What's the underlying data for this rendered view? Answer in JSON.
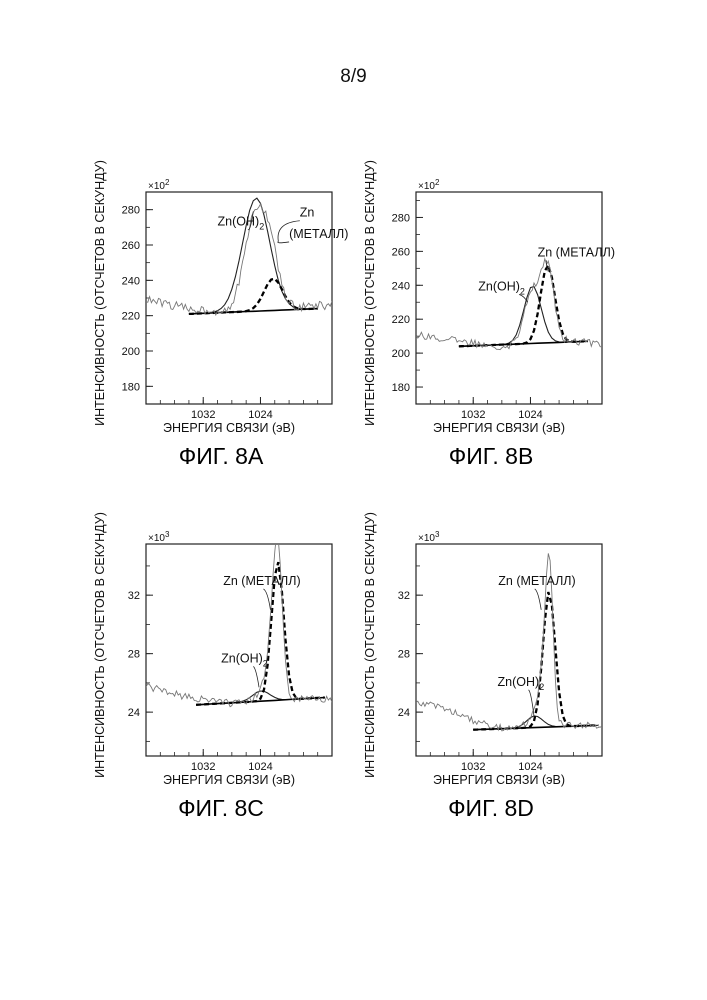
{
  "page": {
    "number": "8/9"
  },
  "chart_data": [
    {
      "id": "8A",
      "type": "line",
      "caption": "ФИГ. 8A",
      "title": "",
      "xlabel": "ЭНЕРГИЯ СВЯЗИ (эВ)",
      "ylabel": "ИНТЕНСИВНОСТЬ (ОТСЧЕТОВ В СЕКУНДУ)",
      "multiplier": "×10",
      "multiplier_exp": "2",
      "xlim": [
        1040,
        1014
      ],
      "ylim": [
        170,
        290
      ],
      "x_ticks": [
        1032,
        1024
      ],
      "y_ticks": [
        180,
        200,
        220,
        240,
        260,
        280
      ],
      "annotations": [
        {
          "text": "Zn(OH)",
          "sub": "2",
          "x": 1030,
          "y": 271,
          "target_x": 1025,
          "target_y": 279
        },
        {
          "text": "Zn",
          "sub": "",
          "x": 1018.5,
          "y": 276,
          "target_x": 1021.5,
          "target_y": 262
        },
        {
          "text": "(МЕТАЛЛ)",
          "sub": "",
          "x": 1020,
          "y": 264,
          "target_x": 1021.5,
          "target_y": 262
        }
      ],
      "series": [
        {
          "name": "Zn(OH)2",
          "style": "thin",
          "noise": 0,
          "data_step": 0.5,
          "baseline": [
            [
              1034,
              221
            ],
            [
              1016,
              224
            ]
          ],
          "peaks": [
            [
              1024.6,
              64,
              1.9
            ]
          ]
        },
        {
          "name": "Zn (МЕТАЛЛ)",
          "style": "dashed",
          "noise": 0,
          "data_step": 0.5,
          "baseline": [
            [
              1034,
              221
            ],
            [
              1016,
              224
            ]
          ],
          "peaks": [
            [
              1022.2,
              18,
              1.3
            ]
          ]
        },
        {
          "name": "",
          "style": "baseline",
          "noise": 0,
          "data_step": 1,
          "baseline": [
            [
              1034,
              221
            ],
            [
              1016,
              224
            ]
          ],
          "peaks": []
        },
        {
          "name": "",
          "style": "raw",
          "noise": 2.5,
          "data_step": 0.25,
          "baseline": [
            [
              1040,
              229
            ],
            [
              1034,
              224
            ],
            [
              1028,
              222
            ],
            [
              1020,
              225
            ],
            [
              1014,
              226
            ]
          ],
          "peaks": [
            [
              1024.5,
              57,
              1.6
            ],
            [
              1022.3,
              18,
              1.0
            ]
          ]
        }
      ]
    },
    {
      "id": "8B",
      "type": "line",
      "caption": "ФИГ. 8B",
      "title": "",
      "xlabel": "ЭНЕРГИЯ СВЯЗИ (эВ)",
      "ylabel": "ИНТЕНСИВНОСТЬ (ОТСЧЕТОВ В СЕКУНДУ)",
      "multiplier": "×10",
      "multiplier_exp": "2",
      "xlim": [
        1040,
        1014
      ],
      "ylim": [
        170,
        295
      ],
      "x_ticks": [
        1032,
        1024
      ],
      "y_ticks": [
        180,
        200,
        220,
        240,
        260,
        280
      ],
      "annotations": [
        {
          "text": "Zn (МЕТАЛЛ)",
          "sub": "",
          "x": 1023,
          "y": 257,
          "target_x": 1021.5,
          "target_y": 248
        },
        {
          "text": "Zn(OH)",
          "sub": "2",
          "x": 1031.3,
          "y": 237,
          "target_x": 1024.4,
          "target_y": 230
        }
      ],
      "series": [
        {
          "name": "Zn(OH)2",
          "style": "thin",
          "noise": 0,
          "data_step": 0.5,
          "baseline": [
            [
              1034,
              204
            ],
            [
              1016,
              207
            ]
          ],
          "peaks": [
            [
              1023.7,
              34,
              1.2
            ]
          ]
        },
        {
          "name": "Zn (МЕТАЛЛ)",
          "style": "dashed",
          "noise": 0,
          "data_step": 0.5,
          "baseline": [
            [
              1034,
              204
            ],
            [
              1016,
              207
            ]
          ],
          "peaks": [
            [
              1021.6,
              46,
              1.0
            ]
          ]
        },
        {
          "name": "",
          "style": "baseline",
          "noise": 0,
          "data_step": 1,
          "baseline": [
            [
              1034,
              204
            ],
            [
              1016,
              207
            ]
          ],
          "peaks": []
        },
        {
          "name": "",
          "style": "raw",
          "noise": 2.3,
          "data_step": 0.25,
          "baseline": [
            [
              1040,
              211
            ],
            [
              1034,
              207
            ],
            [
              1028,
              204
            ],
            [
              1020,
              207
            ],
            [
              1014,
              206
            ]
          ],
          "peaks": [
            [
              1023.8,
              31,
              1.1
            ],
            [
              1021.6,
              43,
              0.9
            ]
          ]
        }
      ]
    },
    {
      "id": "8C",
      "type": "line",
      "caption": "ФИГ. 8C",
      "title": "",
      "xlabel": "ЭНЕРГИЯ СВЯЗИ (эВ)",
      "ylabel": "ИНТЕНСИВНОСТЬ (ОТСЧЕТОВ В СЕКУНДУ)",
      "multiplier": "×10",
      "multiplier_exp": "3",
      "xlim": [
        1040,
        1014
      ],
      "ylim": [
        21,
        35.5
      ],
      "x_ticks": [
        1032,
        1024
      ],
      "y_ticks": [
        24,
        28,
        32
      ],
      "annotations": [
        {
          "text": "Zn (МЕТАЛЛ)",
          "sub": "",
          "x": 1029.2,
          "y": 32.7,
          "target_x": 1022.6,
          "target_y": 31
        },
        {
          "text": "Zn(OH)",
          "sub": "2",
          "x": 1029.5,
          "y": 27.4,
          "target_x": 1024.2,
          "target_y": 25.7
        }
      ],
      "series": [
        {
          "name": "Zn(OH)2",
          "style": "thin",
          "noise": 0,
          "data_step": 0.5,
          "baseline": [
            [
              1033,
              24.5
            ],
            [
              1015,
              25.0
            ]
          ],
          "peaks": [
            [
              1023.9,
              0.7,
              1.2
            ]
          ]
        },
        {
          "name": "Zn (МЕТАЛЛ)",
          "style": "dashed",
          "noise": 0,
          "data_step": 0.5,
          "baseline": [
            [
              1033,
              24.5
            ],
            [
              1015,
              25.0
            ]
          ],
          "peaks": [
            [
              1021.6,
              9.5,
              0.85
            ]
          ]
        },
        {
          "name": "",
          "style": "baseline",
          "noise": 0,
          "data_step": 1,
          "baseline": [
            [
              1033,
              24.5
            ],
            [
              1015,
              25.0
            ]
          ],
          "peaks": []
        },
        {
          "name": "",
          "style": "raw",
          "noise": 0.25,
          "data_step": 0.25,
          "baseline": [
            [
              1040,
              25.8
            ],
            [
              1034,
              25.0
            ],
            [
              1028,
              24.6
            ],
            [
              1020,
              24.9
            ],
            [
              1015,
              24.9
            ]
          ],
          "peaks": [
            [
              1021.6,
              10.3,
              0.65
            ],
            [
              1022.6,
              2.5,
              0.7
            ],
            [
              1024.0,
              0.5,
              1.0
            ]
          ]
        }
      ]
    },
    {
      "id": "8D",
      "type": "line",
      "caption": "ФИГ. 8D",
      "title": "",
      "xlabel": "ЭНЕРГИЯ СВЯЗИ (эВ)",
      "ylabel": "ИНТЕНСИВНОСТЬ (ОТСЧЕТОВ В СЕКУНДУ)",
      "multiplier": "×10",
      "multiplier_exp": "3",
      "xlim": [
        1040,
        1014
      ],
      "ylim": [
        21,
        35.5
      ],
      "x_ticks": [
        1032,
        1024
      ],
      "y_ticks": [
        24,
        28,
        32
      ],
      "annotations": [
        {
          "text": "Zn (МЕТАЛЛ)",
          "sub": "",
          "x": 1028.5,
          "y": 32.7,
          "target_x": 1022.5,
          "target_y": 31
        },
        {
          "text": "Zn(OH)",
          "sub": "2",
          "x": 1028.6,
          "y": 25.8,
          "target_x": 1023.5,
          "target_y": 23.7
        }
      ],
      "series": [
        {
          "name": "Zn(OH)2",
          "style": "thin",
          "noise": 0,
          "data_step": 0.5,
          "baseline": [
            [
              1032,
              22.8
            ],
            [
              1014.5,
              23.1
            ]
          ],
          "peaks": [
            [
              1023.4,
              0.8,
              1.1
            ]
          ]
        },
        {
          "name": "Zn (МЕТАЛЛ)",
          "style": "dashed",
          "noise": 0,
          "data_step": 0.5,
          "baseline": [
            [
              1032,
              22.8
            ],
            [
              1014.5,
              23.1
            ]
          ],
          "peaks": [
            [
              1021.4,
              9.3,
              0.85
            ]
          ]
        },
        {
          "name": "",
          "style": "baseline",
          "noise": 0,
          "data_step": 1,
          "baseline": [
            [
              1032,
              22.8
            ],
            [
              1014.5,
              23.1
            ]
          ],
          "peaks": []
        },
        {
          "name": "",
          "style": "raw",
          "noise": 0.22,
          "data_step": 0.25,
          "baseline": [
            [
              1040,
              24.7
            ],
            [
              1036,
              24.3
            ],
            [
              1032,
              23.4
            ],
            [
              1028,
              22.9
            ],
            [
              1020,
              23.1
            ],
            [
              1014.5,
              23.1
            ]
          ],
          "peaks": [
            [
              1021.4,
              11.3,
              0.55
            ],
            [
              1022.4,
              2.2,
              0.6
            ],
            [
              1023.5,
              0.7,
              0.9
            ]
          ]
        }
      ]
    }
  ]
}
